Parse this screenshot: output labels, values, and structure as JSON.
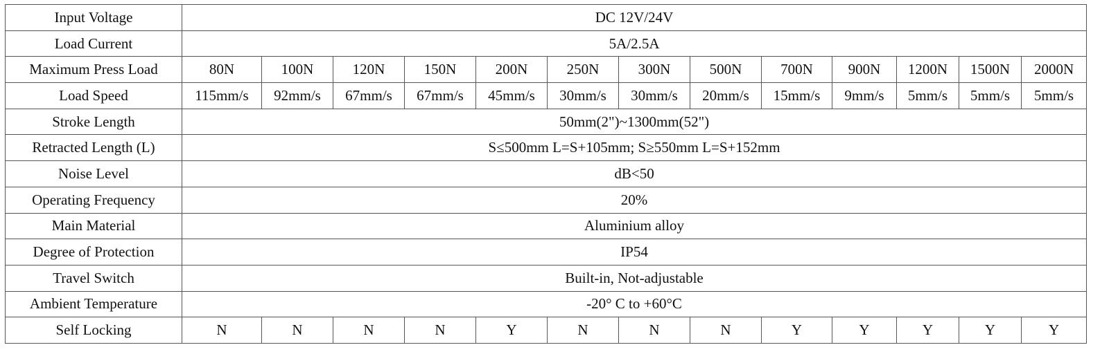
{
  "table": {
    "rows": [
      {
        "label": "Input Voltage",
        "cells": [
          "DC 12V/24V"
        ]
      },
      {
        "label": "Load Current",
        "cells": [
          "5A/2.5A"
        ]
      },
      {
        "label": "Maximum Press Load",
        "cells": [
          "80N",
          "100N",
          "120N",
          "150N",
          "200N",
          "250N",
          "300N",
          "500N",
          "700N",
          "900N",
          "1200N",
          "1500N",
          "2000N"
        ]
      },
      {
        "label": "Load Speed",
        "cells": [
          "115mm/s",
          "92mm/s",
          "67mm/s",
          "67mm/s",
          "45mm/s",
          "30mm/s",
          "30mm/s",
          "20mm/s",
          "15mm/s",
          "9mm/s",
          "5mm/s",
          "5mm/s",
          "5mm/s"
        ]
      },
      {
        "label": "Stroke Length",
        "cells": [
          "50mm(2\")~1300mm(52\")"
        ]
      },
      {
        "label": "Retracted Length (L)",
        "cells": [
          "S≤500mm L=S+105mm; S≥550mm L=S+152mm"
        ]
      },
      {
        "label": "Noise Level",
        "cells": [
          "dB<50"
        ]
      },
      {
        "label": "Operating Frequency",
        "cells": [
          "20%"
        ]
      },
      {
        "label": "Main Material",
        "cells": [
          "Aluminium alloy"
        ]
      },
      {
        "label": "Degree of Protection",
        "cells": [
          "IP54"
        ]
      },
      {
        "label": "Travel Switch",
        "cells": [
          "Built-in, Not-adjustable"
        ]
      },
      {
        "label": "Ambient Temperature",
        "cells": [
          "-20° C to +60°C"
        ]
      },
      {
        "label": "Self Locking",
        "cells": [
          "N",
          "N",
          "N",
          "N",
          "Y",
          "N",
          "N",
          "N",
          "Y",
          "Y",
          "Y",
          "Y",
          "Y"
        ]
      }
    ]
  }
}
